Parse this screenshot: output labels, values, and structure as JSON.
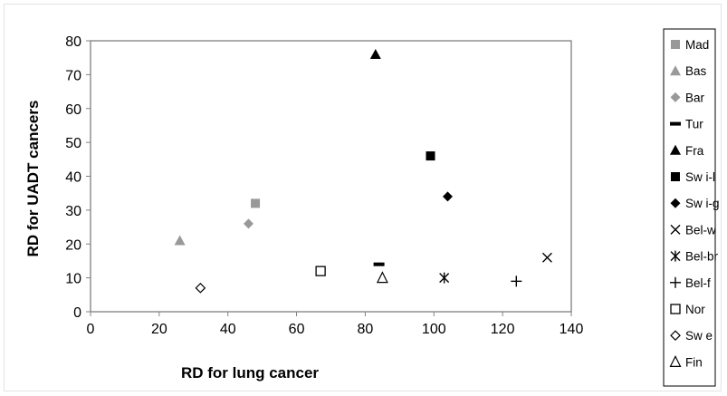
{
  "chart_data": {
    "type": "scatter",
    "title": "",
    "xlabel": "RD for lung cancer",
    "ylabel": "RD for UADT cancers",
    "xlim": [
      0,
      140
    ],
    "ylim": [
      0,
      80
    ],
    "xticks": [
      "0",
      "20",
      "40",
      "60",
      "80",
      "100",
      "120",
      "140"
    ],
    "yticks": [
      "0",
      "10",
      "20",
      "30",
      "40",
      "50",
      "60",
      "70",
      "80"
    ],
    "grid": false,
    "legend_position": "right",
    "series": [
      {
        "name": "Mad",
        "marker": "square",
        "color": "#999999",
        "x": 48,
        "y": 32
      },
      {
        "name": "Bas",
        "marker": "triangle",
        "color": "#999999",
        "x": 26,
        "y": 21
      },
      {
        "name": "Bar",
        "marker": "diamond",
        "color": "#999999",
        "x": 46,
        "y": 26
      },
      {
        "name": "Tur",
        "marker": "dash",
        "color": "#000000",
        "x": 84,
        "y": 14
      },
      {
        "name": "Fra",
        "marker": "triangle",
        "color": "#000000",
        "x": 83,
        "y": 76
      },
      {
        "name": "Sw i-l",
        "marker": "square",
        "color": "#000000",
        "x": 99,
        "y": 46
      },
      {
        "name": "Sw i-g",
        "marker": "diamond",
        "color": "#000000",
        "x": 104,
        "y": 34
      },
      {
        "name": "Bel-w",
        "marker": "x",
        "color": "#000000",
        "x": 133,
        "y": 16
      },
      {
        "name": "Bel-br",
        "marker": "star",
        "color": "#000000",
        "x": 103,
        "y": 10
      },
      {
        "name": "Bel-f",
        "marker": "plus",
        "color": "#000000",
        "x": 124,
        "y": 9
      },
      {
        "name": "Nor",
        "marker": "square-open",
        "color": "#000000",
        "x": 67,
        "y": 12
      },
      {
        "name": "Sw e",
        "marker": "diamond-open",
        "color": "#000000",
        "x": 32,
        "y": 7
      },
      {
        "name": "Fin",
        "marker": "triangle-open",
        "color": "#000000",
        "x": 85,
        "y": 10
      }
    ]
  }
}
